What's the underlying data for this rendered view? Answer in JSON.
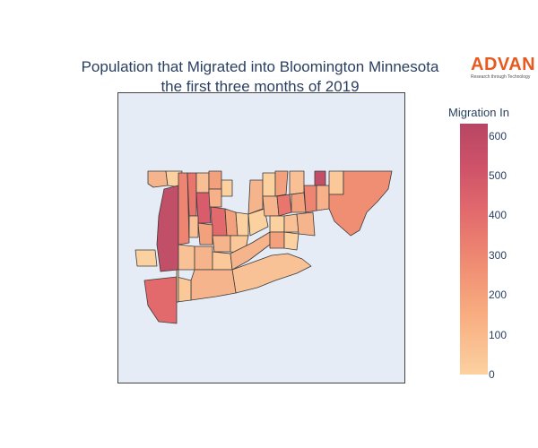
{
  "title": {
    "line1": "Population that Migrated into Bloomington Minnesota",
    "line2": "the first three months of 2019"
  },
  "logo": {
    "word": "ADVAN",
    "tagline": "Research through Technology"
  },
  "colorbar": {
    "title": "Migration In",
    "range": [
      0,
      630
    ],
    "ticks": [
      "0",
      "100",
      "200",
      "300",
      "400",
      "500",
      "600"
    ],
    "colors": [
      "#fcd1a0",
      "#f8ab7f",
      "#ef8b72",
      "#e26a6c",
      "#cf5369",
      "#b84663"
    ]
  },
  "map": {
    "type": "choropleth",
    "region": "Bloomington Minnesota",
    "background": "#e5ecf6"
  }
}
